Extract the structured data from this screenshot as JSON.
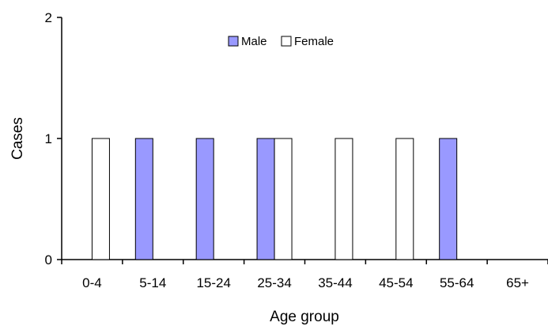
{
  "chart_data": {
    "type": "bar",
    "title": "",
    "xlabel": "Age group",
    "ylabel": "Cases",
    "categories": [
      "0-4",
      "5-14",
      "15-24",
      "25-34",
      "35-44",
      "45-54",
      "55-64",
      "65+"
    ],
    "ylim": [
      0,
      2
    ],
    "yticks": [
      "0",
      "1",
      "2"
    ],
    "grid": false,
    "legend_position": "top-center",
    "series": [
      {
        "name": "Male",
        "color": "#9999ff",
        "values": [
          0,
          1,
          1,
          1,
          0,
          0,
          1,
          0
        ]
      },
      {
        "name": "Female",
        "color": "#ffffff",
        "values": [
          1,
          0,
          0,
          1,
          1,
          1,
          0,
          0
        ]
      }
    ]
  }
}
